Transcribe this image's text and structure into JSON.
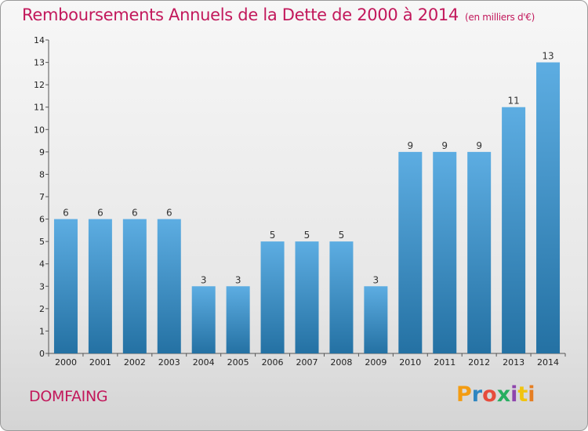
{
  "header": {
    "title": "Remboursements Annuels de la Dette de 2000 à 2014",
    "unit": "(en milliers d'€)"
  },
  "footer": {
    "commune": "DOMFAING",
    "brand": [
      "P",
      "r",
      "o",
      "x",
      "i",
      "t",
      "i"
    ]
  },
  "colors": {
    "title": "#c2185b",
    "bar_top": "#5dade2",
    "bar_bottom": "#2471a3"
  },
  "chart_data": {
    "type": "bar",
    "title": "Remboursements Annuels de la Dette de 2000 à 2014",
    "subtitle": "(en milliers d'€)",
    "xlabel": "",
    "ylabel": "",
    "categories": [
      "2000",
      "2001",
      "2002",
      "2003",
      "2004",
      "2005",
      "2006",
      "2007",
      "2008",
      "2009",
      "2010",
      "2011",
      "2012",
      "2013",
      "2014"
    ],
    "values": [
      6,
      6,
      6,
      6,
      3,
      3,
      5,
      5,
      5,
      3,
      9,
      9,
      9,
      11,
      13
    ],
    "ylim": [
      0,
      14
    ],
    "yticks": [
      0,
      1,
      2,
      3,
      4,
      5,
      6,
      7,
      8,
      9,
      10,
      11,
      12,
      13,
      14
    ],
    "grid": false,
    "legend": "none"
  }
}
